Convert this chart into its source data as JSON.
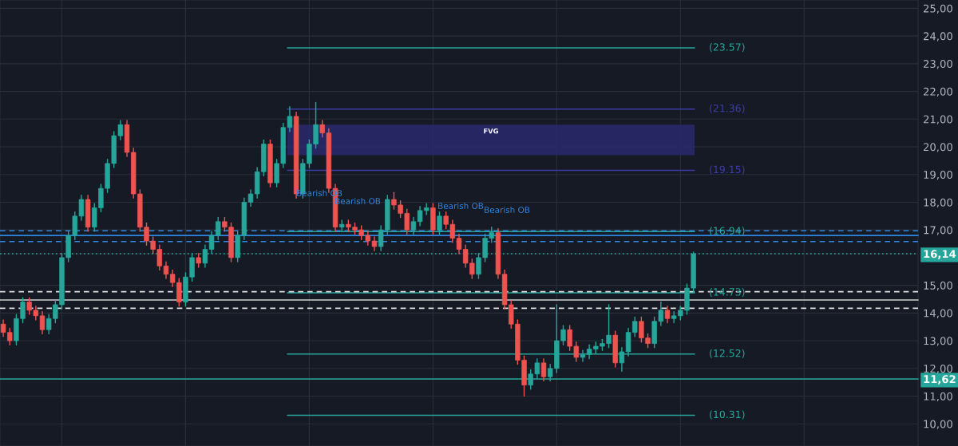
{
  "chart_data": {
    "type": "candlestick",
    "categories": [
      null,
      null,
      null,
      null,
      null,
      null,
      null,
      null,
      null,
      null,
      null,
      null,
      null,
      null,
      null,
      null,
      null,
      null,
      null,
      null,
      null,
      null,
      null,
      null,
      null,
      null,
      null,
      null,
      null,
      null,
      null,
      null,
      null,
      null,
      null,
      null,
      null,
      null,
      null,
      null,
      null,
      null,
      null,
      null,
      null,
      null,
      null,
      null,
      null,
      null,
      null,
      null,
      null,
      null,
      null,
      null,
      null,
      null,
      null,
      null,
      null,
      null,
      null,
      null,
      null,
      null,
      null,
      null,
      null,
      null,
      null,
      null,
      null,
      null,
      null,
      null,
      null,
      null,
      null,
      null,
      null,
      null,
      null,
      null,
      null,
      null,
      null,
      null,
      null,
      null,
      null,
      null,
      null,
      null,
      null,
      null,
      null,
      null,
      null,
      null,
      null,
      null,
      null,
      null,
      null,
      null,
      null,
      null,
      null,
      null,
      null,
      null,
      null,
      null,
      null,
      null,
      null,
      null,
      null,
      null,
      null,
      null,
      null,
      null,
      null,
      null,
      null,
      null,
      null,
      null,
      null,
      null,
      null,
      null,
      null,
      null,
      null,
      null,
      null,
      null,
      null
    ],
    "ohlc": [
      [
        13.6,
        13.75,
        13.15,
        13.3
      ],
      [
        13.3,
        13.45,
        12.85,
        13.0
      ],
      [
        13.0,
        13.95,
        12.85,
        13.8
      ],
      [
        13.8,
        14.55,
        13.65,
        14.4
      ],
      [
        14.4,
        14.55,
        13.95,
        14.1
      ],
      [
        14.1,
        14.25,
        13.75,
        13.9
      ],
      [
        13.9,
        14.05,
        13.25,
        13.4
      ],
      [
        13.4,
        13.95,
        13.25,
        13.8
      ],
      [
        13.8,
        14.45,
        13.65,
        14.3
      ],
      [
        14.3,
        16.15,
        14.15,
        16.0
      ],
      [
        16.0,
        16.95,
        15.85,
        16.8
      ],
      [
        16.8,
        17.65,
        16.65,
        17.5
      ],
      [
        17.5,
        18.25,
        17.35,
        18.1
      ],
      [
        18.1,
        18.25,
        16.95,
        17.1
      ],
      [
        17.1,
        17.95,
        16.95,
        17.8
      ],
      [
        17.8,
        18.65,
        17.65,
        18.5
      ],
      [
        18.5,
        19.55,
        18.35,
        19.4
      ],
      [
        19.4,
        20.55,
        19.25,
        20.4
      ],
      [
        20.4,
        20.95,
        20.25,
        20.8
      ],
      [
        20.8,
        20.95,
        19.65,
        19.8
      ],
      [
        19.8,
        19.95,
        18.15,
        18.3
      ],
      [
        18.3,
        18.45,
        16.95,
        17.1
      ],
      [
        17.1,
        17.25,
        16.45,
        16.6
      ],
      [
        16.6,
        16.75,
        16.15,
        16.3
      ],
      [
        16.3,
        16.45,
        15.55,
        15.7
      ],
      [
        15.7,
        15.85,
        15.25,
        15.4
      ],
      [
        15.4,
        15.55,
        14.95,
        15.1
      ],
      [
        15.1,
        15.25,
        14.25,
        14.4
      ],
      [
        14.4,
        15.45,
        14.25,
        15.3
      ],
      [
        15.3,
        16.15,
        15.15,
        16.0
      ],
      [
        16.0,
        16.15,
        15.65,
        15.8
      ],
      [
        15.8,
        16.45,
        15.65,
        16.3
      ],
      [
        16.3,
        16.95,
        16.15,
        16.8
      ],
      [
        16.8,
        17.45,
        16.65,
        17.3
      ],
      [
        17.3,
        17.45,
        16.95,
        17.1
      ],
      [
        17.1,
        17.25,
        15.85,
        16.0
      ],
      [
        16.0,
        16.95,
        15.85,
        16.8
      ],
      [
        16.8,
        18.15,
        16.65,
        18.0
      ],
      [
        18.0,
        18.45,
        17.85,
        18.3
      ],
      [
        18.3,
        19.25,
        18.15,
        19.1
      ],
      [
        19.1,
        20.25,
        18.95,
        20.1
      ],
      [
        20.1,
        20.25,
        18.55,
        18.7
      ],
      [
        18.7,
        19.55,
        18.55,
        19.4
      ],
      [
        19.4,
        20.85,
        19.25,
        20.7
      ],
      [
        20.7,
        21.45,
        20.55,
        21.1
      ],
      [
        21.1,
        21.25,
        18.15,
        18.3
      ],
      [
        18.3,
        19.55,
        18.15,
        19.4
      ],
      [
        19.4,
        20.25,
        19.25,
        20.1
      ],
      [
        20.1,
        21.6,
        19.95,
        20.8
      ],
      [
        20.8,
        20.95,
        20.35,
        20.5
      ],
      [
        20.5,
        20.65,
        18.35,
        18.5
      ],
      [
        18.5,
        18.65,
        16.95,
        17.1
      ],
      [
        17.1,
        17.35,
        16.95,
        17.2
      ],
      [
        17.2,
        17.35,
        16.95,
        17.1
      ],
      [
        17.1,
        17.25,
        16.85,
        17.0
      ],
      [
        17.0,
        17.15,
        16.65,
        16.8
      ],
      [
        16.8,
        16.95,
        16.45,
        16.6
      ],
      [
        16.6,
        16.75,
        16.25,
        16.4
      ],
      [
        16.4,
        17.15,
        16.25,
        17.0
      ],
      [
        17.0,
        18.25,
        16.85,
        18.1
      ],
      [
        18.1,
        18.35,
        17.75,
        17.9
      ],
      [
        17.9,
        18.05,
        17.45,
        17.6
      ],
      [
        17.6,
        17.75,
        16.85,
        17.0
      ],
      [
        17.0,
        17.45,
        16.85,
        17.3
      ],
      [
        17.3,
        17.85,
        17.15,
        17.7
      ],
      [
        17.7,
        17.95,
        17.55,
        17.8
      ],
      [
        17.8,
        17.95,
        16.85,
        17.0
      ],
      [
        17.0,
        17.65,
        16.85,
        17.5
      ],
      [
        17.5,
        17.65,
        17.05,
        17.2
      ],
      [
        17.2,
        17.35,
        16.55,
        16.7
      ],
      [
        16.7,
        16.85,
        16.15,
        16.3
      ],
      [
        16.3,
        16.45,
        15.65,
        15.8
      ],
      [
        15.8,
        15.95,
        15.25,
        15.4
      ],
      [
        15.4,
        16.15,
        15.25,
        16.0
      ],
      [
        16.0,
        16.85,
        15.85,
        16.7
      ],
      [
        16.7,
        17.1,
        16.55,
        16.9
      ],
      [
        16.9,
        17.05,
        15.25,
        15.4
      ],
      [
        15.4,
        15.55,
        14.15,
        14.3
      ],
      [
        14.3,
        14.45,
        13.45,
        13.6
      ],
      [
        13.6,
        13.75,
        12.15,
        12.3
      ],
      [
        12.3,
        12.45,
        11.0,
        11.4
      ],
      [
        11.4,
        11.95,
        11.25,
        11.8
      ],
      [
        11.8,
        12.35,
        11.65,
        12.2
      ],
      [
        12.2,
        12.35,
        11.55,
        11.7
      ],
      [
        11.7,
        12.15,
        11.55,
        12.0
      ],
      [
        12.0,
        14.3,
        11.85,
        13.0
      ],
      [
        13.0,
        13.55,
        12.85,
        13.4
      ],
      [
        13.4,
        13.55,
        12.65,
        12.8
      ],
      [
        12.8,
        12.95,
        12.25,
        12.4
      ],
      [
        12.4,
        12.65,
        12.25,
        12.5
      ],
      [
        12.5,
        12.85,
        12.35,
        12.7
      ],
      [
        12.7,
        12.95,
        12.55,
        12.8
      ],
      [
        12.8,
        13.05,
        12.65,
        12.9
      ],
      [
        12.9,
        14.3,
        12.75,
        13.2
      ],
      [
        13.2,
        13.35,
        12.05,
        12.2
      ],
      [
        12.2,
        12.75,
        11.9,
        12.6
      ],
      [
        12.6,
        13.45,
        12.45,
        13.3
      ],
      [
        13.3,
        13.85,
        13.15,
        13.7
      ],
      [
        13.7,
        13.85,
        12.95,
        13.1
      ],
      [
        13.1,
        13.25,
        12.75,
        12.9
      ],
      [
        12.9,
        13.85,
        12.75,
        13.7
      ],
      [
        13.7,
        14.4,
        13.55,
        14.1
      ],
      [
        14.1,
        14.25,
        13.65,
        13.8
      ],
      [
        13.8,
        14.05,
        13.65,
        13.9
      ],
      [
        13.9,
        14.25,
        13.75,
        14.1
      ],
      [
        14.1,
        15.05,
        13.95,
        14.9
      ],
      [
        14.9,
        16.2,
        14.75,
        16.14
      ],
      null,
      null,
      null,
      null,
      null,
      null,
      null,
      null,
      null,
      null,
      null,
      null,
      null,
      null,
      null,
      null,
      null,
      null,
      null,
      null,
      null,
      null,
      null,
      null,
      null,
      null,
      null,
      null,
      null,
      null,
      null,
      null,
      null,
      null
    ],
    "ylim": [
      9.2,
      25.3
    ],
    "yticks": [
      {
        "value": 10,
        "label": "10,00"
      },
      {
        "value": 11,
        "label": "11,00"
      },
      {
        "value": 11.62,
        "label": "11,62"
      },
      {
        "value": 12,
        "label": "12,00"
      },
      {
        "value": 13,
        "label": "13,00"
      },
      {
        "value": 14,
        "label": "14,00"
      },
      {
        "value": 15,
        "label": "15,00"
      },
      {
        "value": 16.14,
        "label": "16,14"
      },
      {
        "value": 17,
        "label": "17,00"
      },
      {
        "value": 18,
        "label": "18,00"
      },
      {
        "value": 19,
        "label": "19,00"
      },
      {
        "value": 20,
        "label": "20,00"
      },
      {
        "value": 21,
        "label": "21,00"
      },
      {
        "value": 22,
        "label": "22,00"
      },
      {
        "value": 23,
        "label": "23,00"
      },
      {
        "value": 24,
        "label": "24,00"
      },
      {
        "value": 25,
        "label": "25,00"
      }
    ],
    "grid": true,
    "ref_lines": [
      {
        "axis": "y",
        "value": 23.57,
        "label": "(23.57)",
        "color": "#26a69a",
        "line_style": "solid"
      },
      {
        "axis": "y",
        "value": 21.36,
        "label": "(21.36)",
        "color": "#3c3ca8",
        "line_style": "solid"
      },
      {
        "axis": "y",
        "value": 19.15,
        "label": "(19.15)",
        "color": "#3c3ca8",
        "line_style": "solid"
      },
      {
        "axis": "y",
        "value": 16.94,
        "label": "(16.94)",
        "color": "#26a69a",
        "line_style": "solid"
      },
      {
        "axis": "y",
        "value": 14.73,
        "label": "(14.73)",
        "color": "#26a69a",
        "line_style": "solid"
      },
      {
        "axis": "y",
        "value": 12.52,
        "label": "(12.52)",
        "color": "#26a69a",
        "line_style": "solid"
      },
      {
        "axis": "y",
        "value": 10.31,
        "label": "(10.31)",
        "color": "#26a69a",
        "line_style": "solid"
      },
      {
        "axis": "y",
        "value": 16.14,
        "color": "#26a69a",
        "line_style": "dotted"
      },
      {
        "axis": "y",
        "value": 11.62,
        "color": "#26a69a",
        "line_style": "solid"
      },
      {
        "axis": "y",
        "value": 16.97,
        "color": "#2e86de",
        "line_style": "dashed"
      },
      {
        "axis": "y",
        "value": 16.8,
        "color": "#2e86de",
        "line_style": "solid"
      },
      {
        "axis": "y",
        "value": 16.58,
        "color": "#2e86de",
        "line_style": "dashed"
      },
      {
        "axis": "y",
        "value": 14.77,
        "color": "#e0e0e0",
        "line_style": "dashed"
      },
      {
        "axis": "y",
        "value": 14.47,
        "color": "#d0d0d0",
        "line_style": "solid"
      },
      {
        "axis": "y",
        "value": 14.17,
        "color": "#e0e0e0",
        "line_style": "dashed"
      }
    ],
    "bands": [
      {
        "axis": "y",
        "from": 19.7,
        "to": 20.8,
        "label": "FVG",
        "color": "#2a2a72"
      }
    ],
    "annotations": [
      "Bearish OB",
      "Bearish OB",
      "Bearish OB",
      "Bearish OB"
    ]
  }
}
